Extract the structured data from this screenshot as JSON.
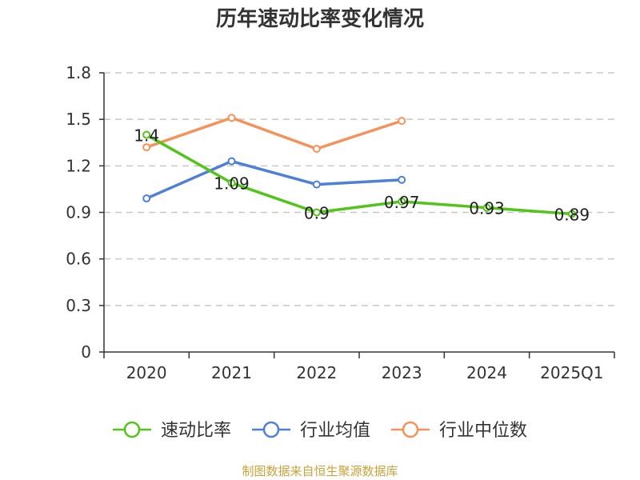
{
  "chart_data": {
    "type": "line",
    "title": "历年速动比率变化情况",
    "categories": [
      "2020",
      "2021",
      "2022",
      "2023",
      "2024",
      "2025Q1"
    ],
    "yticks": [
      "0",
      "0.3",
      "0.6",
      "0.9",
      "1.2",
      "1.5",
      "1.8"
    ],
    "ylim": [
      0,
      1.8
    ],
    "grid": true,
    "legend_position": "bottom",
    "series": [
      {
        "name": "速动比率",
        "color": "#52c41a",
        "values": [
          1.4,
          1.09,
          0.9,
          0.97,
          0.93,
          0.89
        ],
        "labels": [
          "1.4",
          "1.09",
          "0.9",
          "0.97",
          "0.93",
          "0.89"
        ]
      },
      {
        "name": "行业均值",
        "color": "#4e7fd9",
        "values": [
          0.99,
          1.23,
          1.08,
          1.11,
          null,
          null
        ]
      },
      {
        "name": "行业中位数",
        "color": "#f5925b",
        "values": [
          1.32,
          1.51,
          1.31,
          1.49,
          null,
          null
        ]
      }
    ],
    "source": "制图数据来自恒生聚源数据库",
    "source_color": "#c8a23a"
  }
}
